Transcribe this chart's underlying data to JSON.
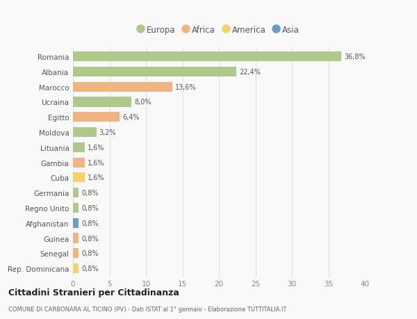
{
  "countries": [
    "Romania",
    "Albania",
    "Marocco",
    "Ucraina",
    "Egitto",
    "Moldova",
    "Lituania",
    "Gambia",
    "Cuba",
    "Germania",
    "Regno Unito",
    "Afghanistan",
    "Guinea",
    "Senegal",
    "Rep. Dominicana"
  ],
  "values": [
    36.8,
    22.4,
    13.6,
    8.0,
    6.4,
    3.2,
    1.6,
    1.6,
    1.6,
    0.8,
    0.8,
    0.8,
    0.8,
    0.8,
    0.8
  ],
  "labels": [
    "36,8%",
    "22,4%",
    "13,6%",
    "8,0%",
    "6,4%",
    "3,2%",
    "1,6%",
    "1,6%",
    "1,6%",
    "0,8%",
    "0,8%",
    "0,8%",
    "0,8%",
    "0,8%",
    "0,8%"
  ],
  "colors": [
    "#aec98a",
    "#aec98a",
    "#f0b482",
    "#aec98a",
    "#f0b482",
    "#aec98a",
    "#aec98a",
    "#f0b482",
    "#f5d06e",
    "#aec98a",
    "#aec98a",
    "#6b9dc2",
    "#f0b482",
    "#f0b482",
    "#f5d06e"
  ],
  "continents": [
    "Europa",
    "Africa",
    "America",
    "Asia"
  ],
  "continent_colors": [
    "#aec98a",
    "#f0b482",
    "#f5d06e",
    "#6b9dc2"
  ],
  "xlim": [
    0,
    40
  ],
  "xticks": [
    0,
    5,
    10,
    15,
    20,
    25,
    30,
    35,
    40
  ],
  "title": "Cittadini Stranieri per Cittadinanza",
  "subtitle": "COMUNE DI CARBONARA AL TICINO (PV) - Dati ISTAT al 1° gennaio - Elaborazione TUTTITALIA.IT",
  "bg_color": "#f9f9f9",
  "grid_color": "#e0e0e0",
  "bar_height": 0.65
}
